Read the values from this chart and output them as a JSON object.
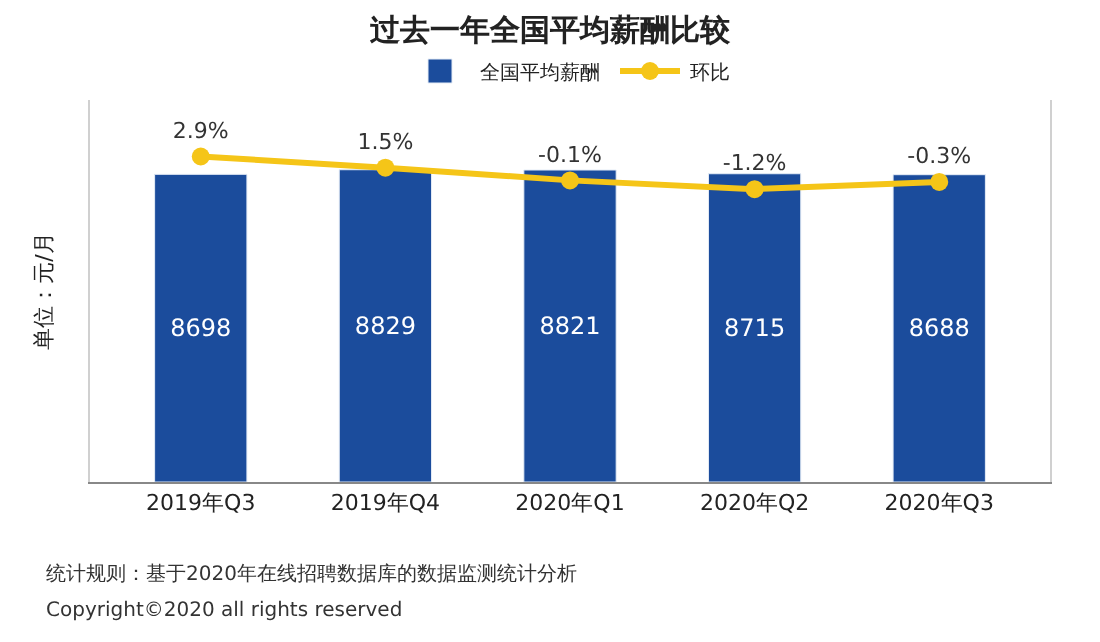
{
  "chart_data": {
    "type": "bar",
    "title": "过去一年全国平均薪酬比较",
    "ylabel": "单位：元/月",
    "categories": [
      "2019年Q3",
      "2019年Q4",
      "2020年Q1",
      "2020年Q2",
      "2020年Q3"
    ],
    "series": [
      {
        "name": "全国平均薪酬",
        "color": "#1b4c9c",
        "values": [
          8698,
          8829,
          8821,
          8715,
          8688
        ],
        "value_labels": [
          "8698",
          "8829",
          "8821",
          "8715",
          "8688"
        ]
      },
      {
        "name": "环比",
        "type": "line",
        "axis": "y2",
        "color": "#f5c518",
        "marker": "circle",
        "values": [
          2.9,
          1.5,
          -0.1,
          -1.2,
          -0.3
        ],
        "value_labels": [
          "2.9%",
          "1.5%",
          "-0.1%",
          "-1.2%",
          "-0.3%"
        ]
      }
    ],
    "ylim": [
      0,
      10800
    ],
    "y2lim": [
      -38,
      10
    ],
    "tick_labels": "x",
    "legend": "top",
    "annotations": [
      "统计规则：基于2020年在线招聘数据库的数据监测统计分析",
      "Copyright©2020 all rights reserved"
    ]
  }
}
